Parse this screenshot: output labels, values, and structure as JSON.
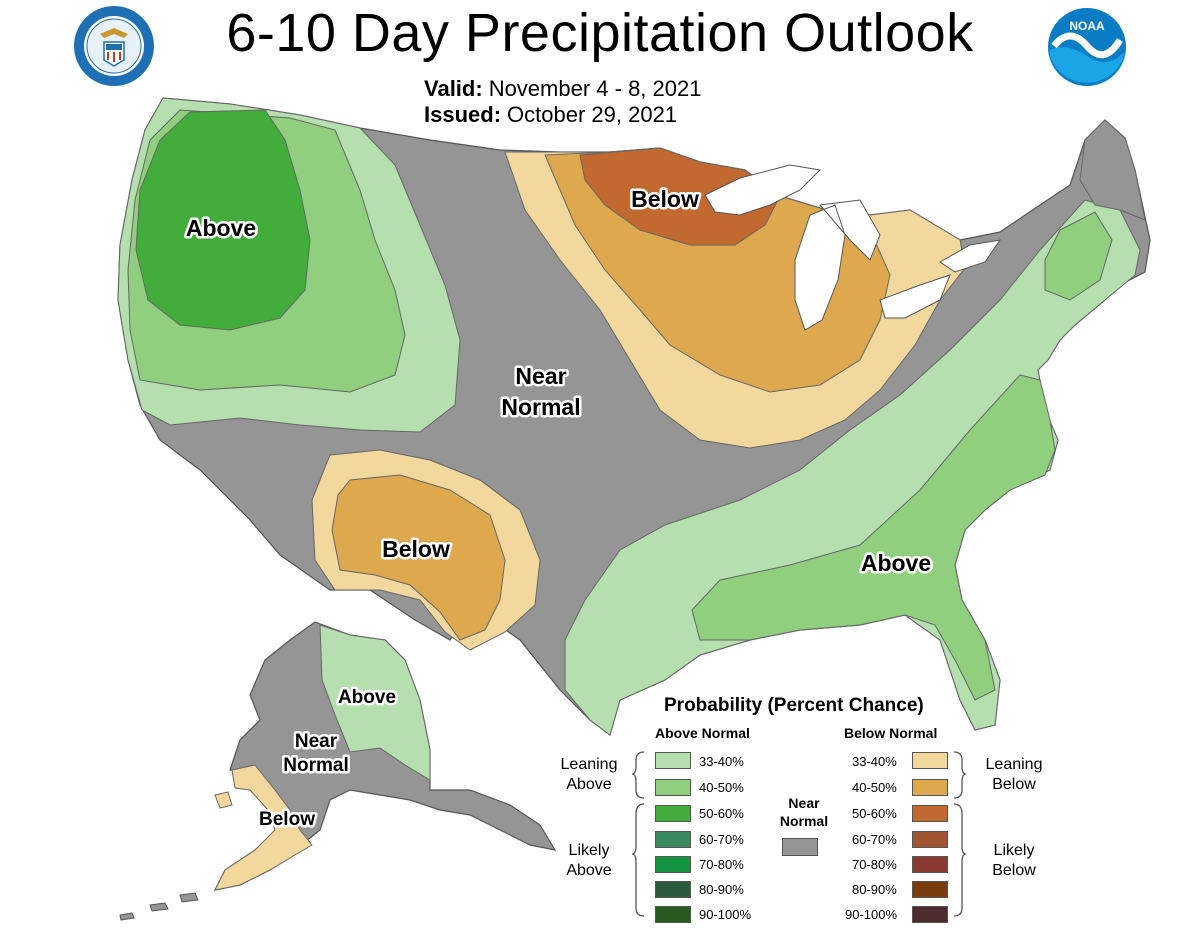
{
  "header": {
    "title": "6-10 Day Precipitation Outlook",
    "valid_label": "Valid:",
    "valid_value": "November 4 - 8, 2021",
    "issued_label": "Issued:",
    "issued_value": "October 29, 2021"
  },
  "logos": {
    "commerce_seal": "department-of-commerce-seal",
    "commerce_seal_text": "DEPARTMENT OF COMMERCE · UNITED STATES OF AMERICA",
    "noaa_logo": "noaa-logo",
    "noaa_text": "NOAA"
  },
  "map": {
    "regions": {
      "northwest": "Above",
      "upper_midwest": "Below",
      "central": [
        "Near",
        "Normal"
      ],
      "southwest": "Below",
      "southeast": "Above",
      "alaska_east": "Above",
      "alaska_central": [
        "Near",
        "Normal"
      ],
      "alaska_southwest": "Below"
    }
  },
  "legend": {
    "title": "Probability (Percent Chance)",
    "above_header": "Above Normal",
    "below_header": "Below Normal",
    "near_normal": [
      "Near",
      "Normal"
    ],
    "leaning_above": [
      "Leaning",
      "Above"
    ],
    "likely_above": [
      "Likely",
      "Above"
    ],
    "leaning_below": [
      "Leaning",
      "Below"
    ],
    "likely_below": [
      "Likely",
      "Below"
    ],
    "above_bins": [
      {
        "label": "33-40%",
        "color": "#b6dfb0"
      },
      {
        "label": "40-50%",
        "color": "#8fcf7e"
      },
      {
        "label": "50-60%",
        "color": "#43ad3b"
      },
      {
        "label": "60-70%",
        "color": "#3a8a5f"
      },
      {
        "label": "70-80%",
        "color": "#129440"
      },
      {
        "label": "80-90%",
        "color": "#2c5a3c"
      },
      {
        "label": "90-100%",
        "color": "#285a1f"
      }
    ],
    "below_bins": [
      {
        "label": "33-40%",
        "color": "#f3d89d"
      },
      {
        "label": "40-50%",
        "color": "#dea84f"
      },
      {
        "label": "50-60%",
        "color": "#c1692f"
      },
      {
        "label": "60-70%",
        "color": "#9f5532"
      },
      {
        "label": "70-80%",
        "color": "#8b3a31"
      },
      {
        "label": "80-90%",
        "color": "#7a3c0a"
      },
      {
        "label": "90-100%",
        "color": "#4c2c2c"
      }
    ],
    "near_color": "#959595"
  }
}
